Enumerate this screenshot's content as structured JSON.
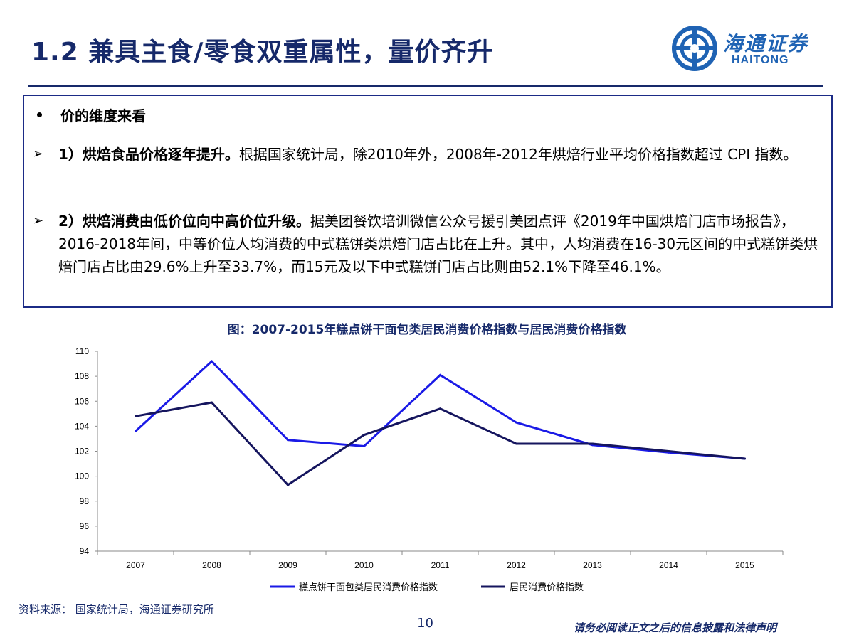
{
  "slide": {
    "title": "1.2 兼具主食/零食双重属性，量价齐升"
  },
  "logo": {
    "name_cn": "海通证券",
    "name_en": "HAITONG"
  },
  "content": {
    "bullet_heading": "价的维度来看",
    "points": [
      {
        "bold": "1）烘焙食品价格逐年提升。",
        "text": "根据国家统计局，除2010年外，2008年-2012年烘焙行业平均价格指数超过 CPI 指数。"
      },
      {
        "bold": "2）烘焙消费由低价位向中高价位升级。",
        "text": "据美团餐饮培训微信公众号援引美团点评《2019年中国烘焙门店市场报告》，2016-2018年间，中等价位人均消费的中式糕饼类烘焙门店占比在上升。其中，人均消费在16-30元区间的中式糕饼类烘焙门店占比由29.6%上升至33.7%，而15元及以下中式糕饼门店占比则由52.1%下降至46.1%。"
      }
    ]
  },
  "chart_data": {
    "type": "line",
    "title": "图：2007-2015年糕点饼干面包类居民消费价格指数与居民消费价格指数",
    "xlabel": "",
    "ylabel": "",
    "x": [
      "2007",
      "2008",
      "2009",
      "2010",
      "2011",
      "2012",
      "2013",
      "2014",
      "2015"
    ],
    "ylim": [
      94,
      110
    ],
    "yticks": [
      "94",
      "96",
      "98",
      "100",
      "102",
      "104",
      "106",
      "108",
      "110"
    ],
    "grid": false,
    "legend_position": "bottom",
    "series": [
      {
        "name": "糕点饼干面包类居民消费价格指数",
        "color": "#1a1ae6",
        "values": [
          103.6,
          109.2,
          102.9,
          102.4,
          108.1,
          104.3,
          102.5,
          101.9,
          101.4
        ]
      },
      {
        "name": "居民消费价格指数",
        "color": "#15155e",
        "values": [
          104.8,
          105.9,
          99.3,
          103.3,
          105.4,
          102.6,
          102.6,
          102.0,
          101.4
        ]
      }
    ]
  },
  "source_text": "资料来源：  国家统计局，海通证券研究所",
  "page_number": "10",
  "disclaimer": "请务必阅读正文之后的信息披露和法律声明"
}
